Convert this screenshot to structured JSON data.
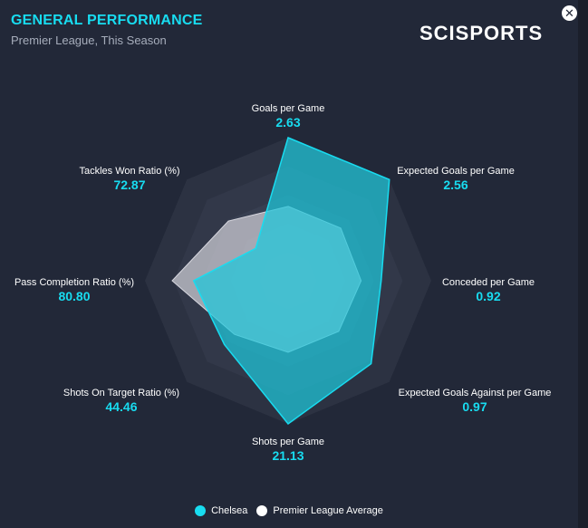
{
  "header": {
    "title": "GENERAL PERFORMANCE",
    "subtitle": "Premier League, This Season",
    "brand": "SCISPORTS",
    "close_icon": "close-icon"
  },
  "colors": {
    "accent": "#18dcf0",
    "team": "#1fc7db",
    "average": "#c9c9d2"
  },
  "chart_data": {
    "type": "radar",
    "title": "GENERAL PERFORMANCE",
    "subtitle": "Premier League, This Season",
    "rmax": 1,
    "rings": 5,
    "axes": [
      {
        "label": "Goals per Game",
        "value": "2.63"
      },
      {
        "label": "Expected Goals per Game",
        "value": "2.56"
      },
      {
        "label": "Conceded per Game",
        "value": "0.92"
      },
      {
        "label": "Expected Goals Against per Game",
        "value": "0.97"
      },
      {
        "label": "Shots per Game",
        "value": "21.13"
      },
      {
        "label": "Shots On Target Ratio (%)",
        "value": "44.46"
      },
      {
        "label": "Pass Completion Ratio (%)",
        "value": "80.80"
      },
      {
        "label": "Tackles Won Ratio (%)",
        "value": "72.87"
      }
    ],
    "series": [
      {
        "name": "Premier League Average",
        "values": [
          0.52,
          0.52,
          0.51,
          0.5,
          0.5,
          0.53,
          0.81,
          0.59
        ]
      },
      {
        "name": "Chelsea",
        "values": [
          1.0,
          1.0,
          0.65,
          0.82,
          1.0,
          0.63,
          0.66,
          0.32
        ]
      }
    ],
    "legend": "bottom"
  },
  "legend": {
    "items": [
      {
        "label": "Chelsea"
      },
      {
        "label": "Premier League Average"
      }
    ]
  }
}
